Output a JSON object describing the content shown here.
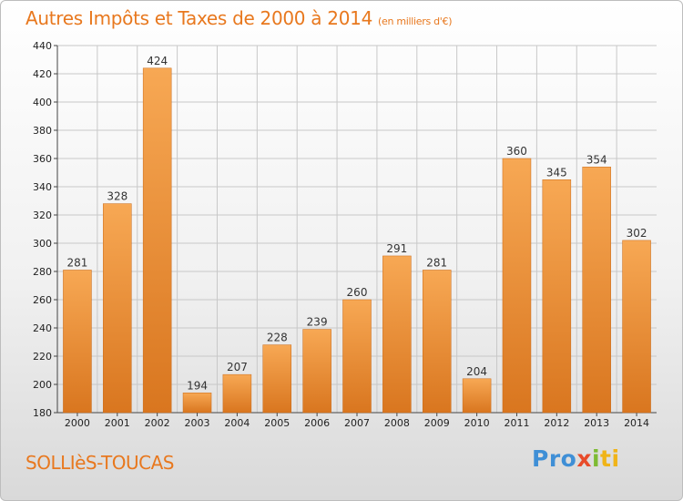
{
  "header": {
    "title": "Autres Impôts et Taxes de 2000 à 2014",
    "unit": "(en milliers d'€)"
  },
  "footer": {
    "commune": "SOLLIèS-TOUCAS",
    "logo_parts": [
      "Pro",
      "x",
      "i",
      "ti"
    ]
  },
  "colors": {
    "title": "#e8781e",
    "bar_top": "#f7a854",
    "bar_bottom": "#d9761f",
    "grid": "#c8c8c8"
  },
  "chart_data": {
    "type": "bar",
    "title": "Autres Impôts et Taxes de 2000 à 2014",
    "subtitle": "(en milliers d'€)",
    "categories": [
      "2000",
      "2001",
      "2002",
      "2003",
      "2004",
      "2005",
      "2006",
      "2007",
      "2008",
      "2009",
      "2010",
      "2011",
      "2012",
      "2013",
      "2014"
    ],
    "values": [
      281,
      328,
      424,
      194,
      207,
      228,
      239,
      260,
      291,
      281,
      204,
      360,
      345,
      354,
      302
    ],
    "ylim": [
      180,
      440
    ],
    "yticks": [
      180,
      200,
      220,
      240,
      260,
      280,
      300,
      320,
      340,
      360,
      380,
      400,
      420,
      440
    ],
    "grid": true,
    "legend": "none"
  }
}
